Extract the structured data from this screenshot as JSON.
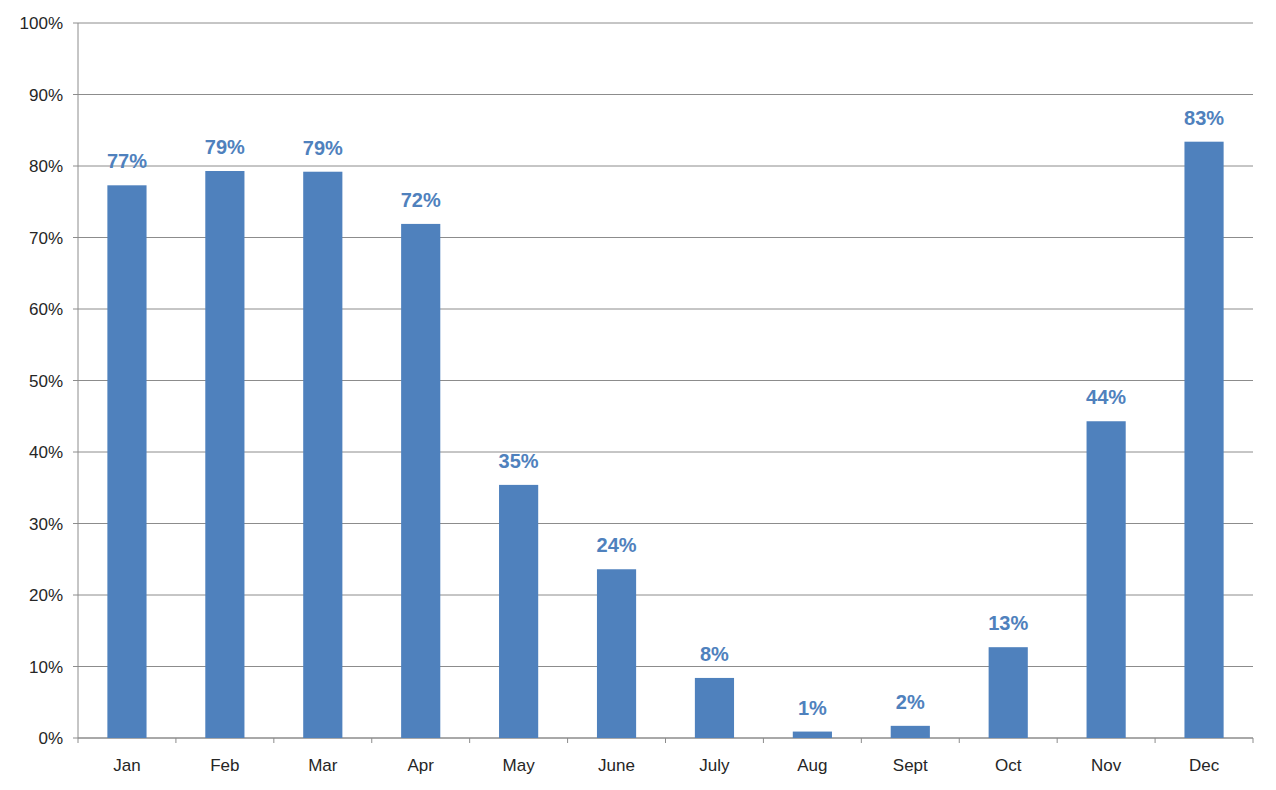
{
  "chart_data": {
    "type": "bar",
    "categories": [
      "Jan",
      "Feb",
      "Mar",
      "Apr",
      "May",
      "June",
      "July",
      "Aug",
      "Sept",
      "Oct",
      "Nov",
      "Dec"
    ],
    "values": [
      77.3,
      79.3,
      79.2,
      71.9,
      35.4,
      23.6,
      8.4,
      0.9,
      1.7,
      12.7,
      44.3,
      83.4
    ],
    "value_labels": [
      "77%",
      "79%",
      "79%",
      "72%",
      "35%",
      "24%",
      "8%",
      "1%",
      "2%",
      "13%",
      "44%",
      "83%"
    ],
    "color": "#4f81bd",
    "ylim": [
      0,
      100
    ],
    "yticks": [
      {
        "value": 0,
        "label": "0%"
      },
      {
        "value": 10,
        "label": "10%"
      },
      {
        "value": 20,
        "label": "20%"
      },
      {
        "value": 30,
        "label": "30%"
      },
      {
        "value": 40,
        "label": "40%"
      },
      {
        "value": 50,
        "label": "50%"
      },
      {
        "value": 60,
        "label": "60%"
      },
      {
        "value": 70,
        "label": "70%"
      },
      {
        "value": 80,
        "label": "80%"
      },
      {
        "value": 90,
        "label": "90%"
      },
      {
        "value": 100,
        "label": "100%"
      }
    ],
    "grid": true,
    "data_labels": true
  }
}
